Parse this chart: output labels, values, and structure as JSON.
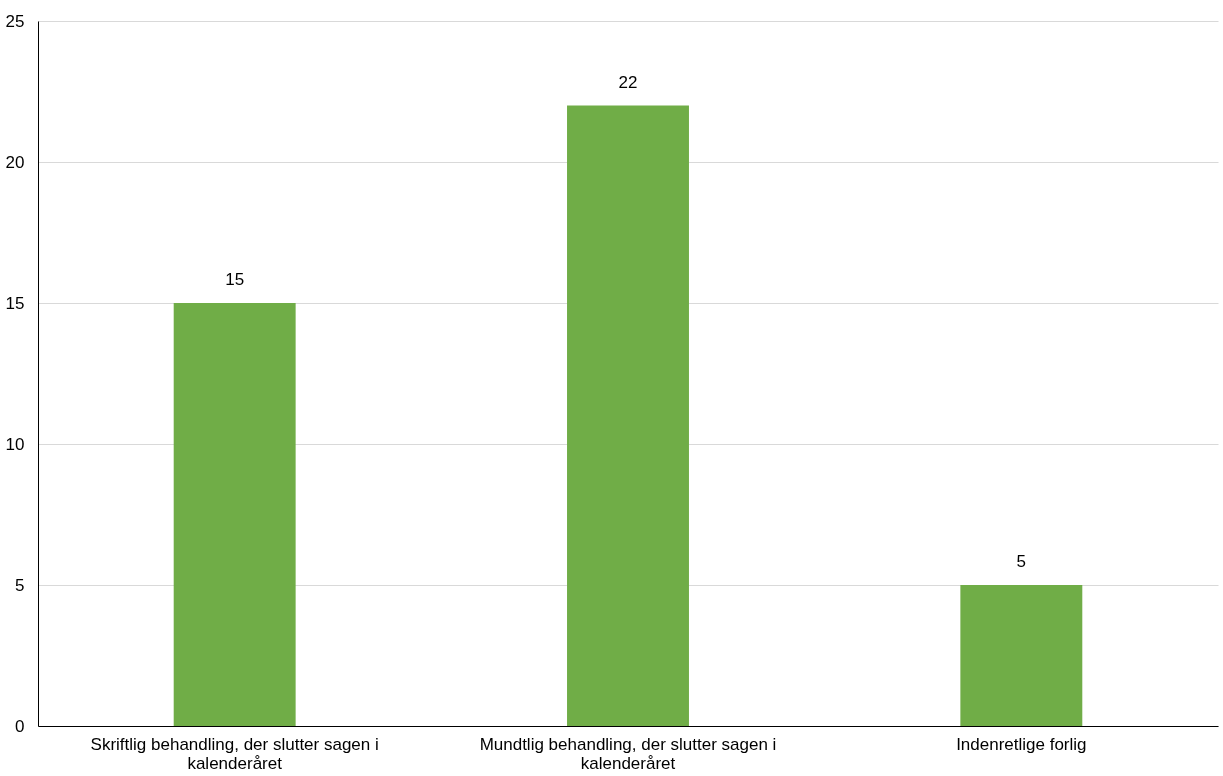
{
  "chart_data": {
    "type": "bar",
    "categories": [
      "Skriftlig behandling, der slutter sagen i kalenderåret",
      "Mundtlig behandling, der slutter sagen i kalenderåret",
      "Indenretlige forlig"
    ],
    "values": [
      15,
      22,
      5
    ],
    "color": "#70ad47",
    "ylim": [
      0,
      25
    ],
    "yticks": [
      0,
      5,
      10,
      15,
      20,
      25
    ],
    "grid": "y",
    "data_labels": true
  }
}
